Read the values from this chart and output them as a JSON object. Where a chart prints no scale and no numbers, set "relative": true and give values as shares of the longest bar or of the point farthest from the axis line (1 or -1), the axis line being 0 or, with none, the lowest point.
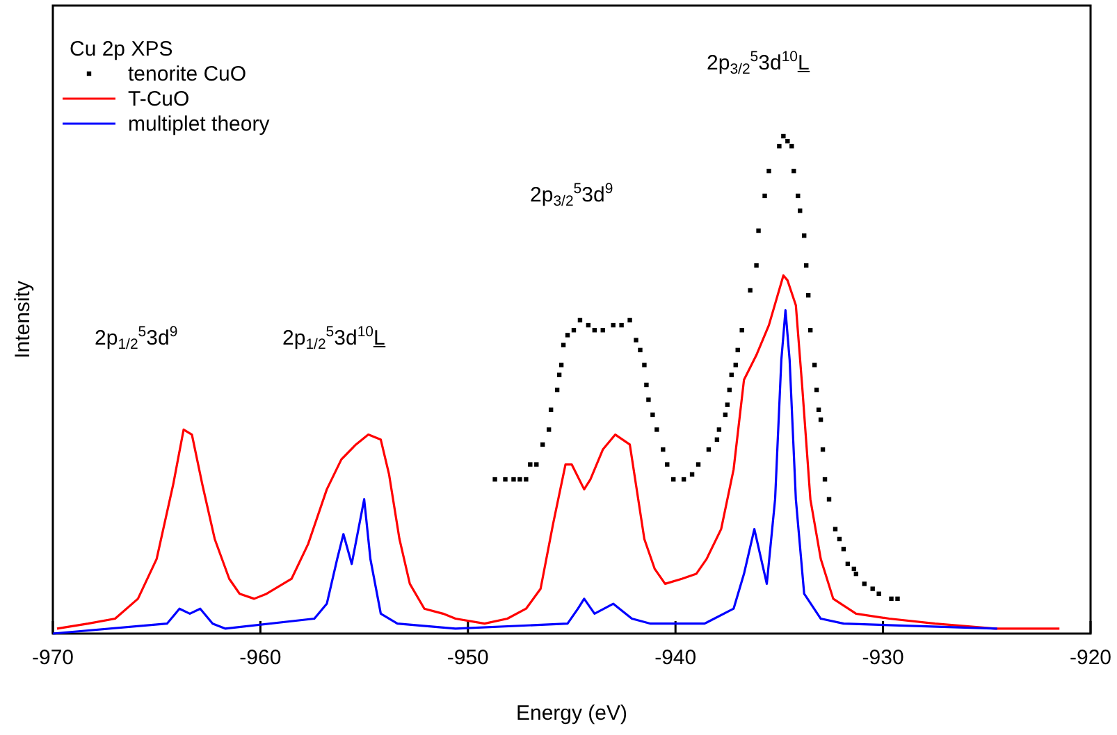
{
  "chart_data": {
    "type": "line",
    "relative": true,
    "xlabel": "Energy (eV)",
    "ylabel": "Intensity",
    "legend_title": "Cu 2p XPS",
    "legend": "top left",
    "grid": false,
    "xlim": [
      -970,
      -920
    ],
    "xticks": [
      -970,
      -960,
      -950,
      -940,
      -930,
      -920
    ],
    "annotations": [
      "2p$_{1/2}$$^{5}$3d$^{9}$",
      "2p$_{1/2}$$^{5}$3d$^{10}$L̲",
      "2p$_{3/2}$$^{5}$3d$^{9}$",
      "2p$_{3/2}$$^{5}$3d$^{10}$L̲"
    ],
    "series": [
      {
        "name": "tenorite CuO",
        "type": "scatter",
        "marker": "square",
        "color": "#000000",
        "x": [
          -948.7,
          -948.2,
          -947.8,
          -947.5,
          -947.2,
          -947.0,
          -946.7,
          -946.4,
          -946.1,
          -946.0,
          -945.7,
          -945.6,
          -945.5,
          -945.4,
          -945.2,
          -944.9,
          -944.6,
          -944.2,
          -943.9,
          -943.5,
          -943.0,
          -942.6,
          -942.2,
          -941.9,
          -941.7,
          -941.5,
          -941.4,
          -941.3,
          -941.1,
          -940.9,
          -940.6,
          -940.4,
          -940.1,
          -939.6,
          -939.2,
          -938.9,
          -938.4,
          -938.0,
          -937.9,
          -937.6,
          -937.5,
          -937.4,
          -937.3,
          -937.1,
          -937.0,
          -936.8,
          -936.4,
          -936.1,
          -936.0,
          -935.7,
          -935.5,
          -935.0,
          -934.8,
          -934.6,
          -934.4,
          -934.3,
          -934.1,
          -934.0,
          -933.8,
          -933.7,
          -933.6,
          -933.5,
          -933.3,
          -933.2,
          -933.1,
          -933.0,
          -932.9,
          -932.8,
          -932.6,
          -932.3,
          -932.1,
          -931.9,
          -931.7,
          -931.4,
          -931.3,
          -930.9,
          -930.5,
          -930.2,
          -929.6,
          -929.3
        ],
        "values": [
          0.31,
          0.31,
          0.31,
          0.31,
          0.31,
          0.34,
          0.34,
          0.38,
          0.41,
          0.45,
          0.49,
          0.52,
          0.54,
          0.58,
          0.6,
          0.61,
          0.63,
          0.62,
          0.61,
          0.61,
          0.62,
          0.62,
          0.63,
          0.59,
          0.57,
          0.54,
          0.5,
          0.47,
          0.44,
          0.41,
          0.37,
          0.34,
          0.31,
          0.31,
          0.32,
          0.34,
          0.37,
          0.39,
          0.41,
          0.44,
          0.46,
          0.49,
          0.52,
          0.54,
          0.57,
          0.61,
          0.69,
          0.74,
          0.81,
          0.88,
          0.93,
          0.98,
          1.0,
          0.99,
          0.98,
          0.93,
          0.88,
          0.85,
          0.8,
          0.74,
          0.68,
          0.61,
          0.54,
          0.49,
          0.45,
          0.43,
          0.37,
          0.31,
          0.27,
          0.21,
          0.19,
          0.17,
          0.14,
          0.13,
          0.12,
          0.1,
          0.09,
          0.08,
          0.07,
          0.07
        ]
      },
      {
        "name": "T-CuO",
        "color": "#ff0000",
        "x": [
          -969.8,
          -968.3,
          -967.0,
          -965.9,
          -965.0,
          -964.2,
          -963.7,
          -963.3,
          -962.8,
          -962.2,
          -961.5,
          -961.0,
          -960.3,
          -959.7,
          -958.5,
          -957.7,
          -956.8,
          -956.1,
          -955.4,
          -954.8,
          -954.2,
          -953.8,
          -953.3,
          -952.8,
          -952.1,
          -951.2,
          -950.6,
          -949.2,
          -948.1,
          -947.2,
          -946.5,
          -945.9,
          -945.3,
          -945.0,
          -944.4,
          -944.1,
          -943.5,
          -942.9,
          -942.2,
          -941.5,
          -941.0,
          -940.5,
          -939.7,
          -939.0,
          -938.5,
          -937.8,
          -937.2,
          -936.7,
          -936.1,
          -935.5,
          -934.8,
          -934.6,
          -934.2,
          -933.9,
          -933.5,
          -933.0,
          -932.4,
          -931.3,
          -929.7,
          -927.5,
          -924.6,
          -921.5
        ],
        "values": [
          0.01,
          0.02,
          0.03,
          0.07,
          0.15,
          0.3,
          0.41,
          0.4,
          0.3,
          0.19,
          0.11,
          0.08,
          0.07,
          0.08,
          0.11,
          0.18,
          0.29,
          0.35,
          0.38,
          0.4,
          0.39,
          0.32,
          0.19,
          0.1,
          0.05,
          0.04,
          0.03,
          0.02,
          0.03,
          0.05,
          0.09,
          0.22,
          0.34,
          0.34,
          0.29,
          0.31,
          0.37,
          0.4,
          0.38,
          0.19,
          0.13,
          0.1,
          0.11,
          0.12,
          0.15,
          0.21,
          0.33,
          0.51,
          0.56,
          0.62,
          0.72,
          0.71,
          0.66,
          0.5,
          0.27,
          0.15,
          0.07,
          0.04,
          0.03,
          0.02,
          0.01,
          0.01
        ]
      },
      {
        "name": "multiplet theory",
        "color": "#0000ff",
        "x": [
          -970.0,
          -964.5,
          -963.9,
          -963.4,
          -962.9,
          -962.3,
          -961.7,
          -957.4,
          -956.8,
          -956.3,
          -956.0,
          -955.6,
          -955.0,
          -954.7,
          -954.2,
          -953.4,
          -950.6,
          -945.2,
          -944.7,
          -944.4,
          -943.9,
          -943.0,
          -942.7,
          -942.1,
          -941.2,
          -938.6,
          -937.2,
          -936.7,
          -936.2,
          -935.6,
          -935.2,
          -934.9,
          -934.7,
          -934.5,
          -934.2,
          -933.8,
          -933.0,
          -931.9,
          -924.5
        ],
        "values": [
          0.0,
          0.02,
          0.05,
          0.04,
          0.05,
          0.02,
          0.01,
          0.03,
          0.06,
          0.15,
          0.2,
          0.14,
          0.27,
          0.15,
          0.04,
          0.02,
          0.01,
          0.02,
          0.05,
          0.07,
          0.04,
          0.06,
          0.05,
          0.03,
          0.02,
          0.02,
          0.05,
          0.12,
          0.21,
          0.1,
          0.27,
          0.55,
          0.65,
          0.55,
          0.27,
          0.08,
          0.03,
          0.02,
          0.01
        ]
      }
    ]
  }
}
